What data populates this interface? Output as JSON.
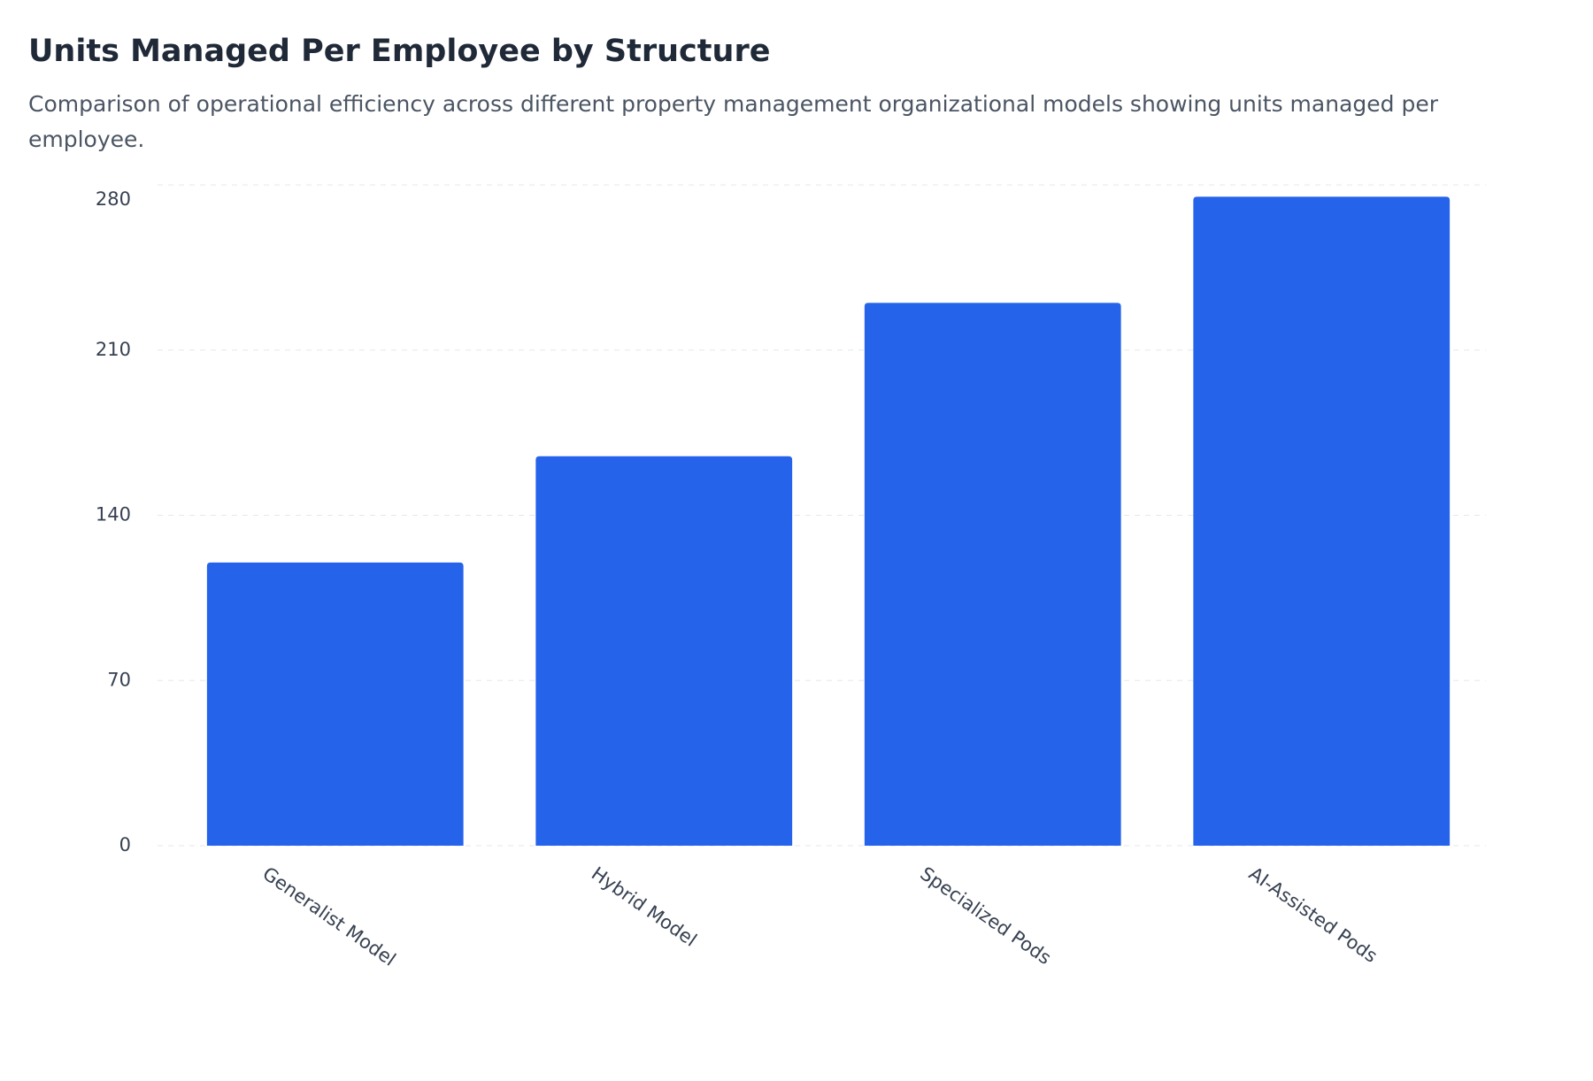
{
  "chart_data": {
    "type": "bar",
    "title": "Units Managed Per Employee by Structure",
    "subtitle": "Comparison of operational efficiency across different property management organizational models showing units managed per employee.",
    "categories": [
      "Generalist Model",
      "Hybrid Model",
      "Specialized Pods",
      "AI-Assisted Pods"
    ],
    "values": [
      120,
      165,
      230,
      275
    ],
    "color": "#2563eb",
    "ylim": [
      0,
      280
    ],
    "yticks": [
      0,
      70,
      140,
      210,
      280
    ],
    "grid": true
  }
}
